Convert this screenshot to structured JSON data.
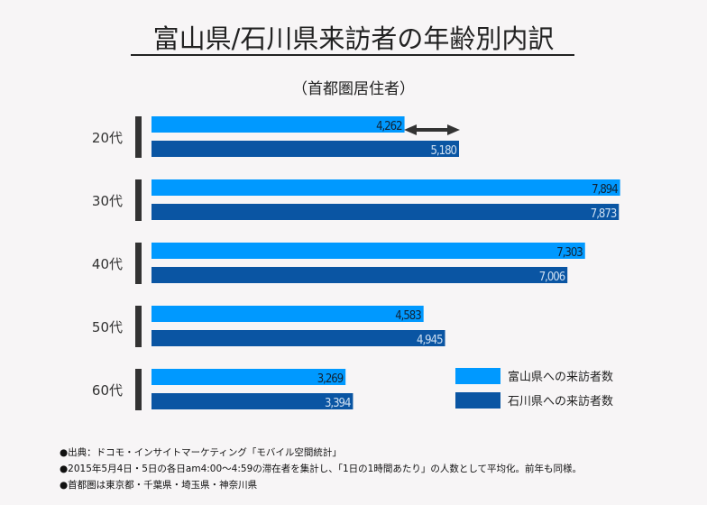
{
  "title": "富山県/石川県来訪者の年齢別内訳",
  "subtitle": "（首都圏居住者）",
  "chart_data": {
    "type": "bar",
    "orientation": "horizontal",
    "categories": [
      "20代",
      "30代",
      "40代",
      "50代",
      "60代"
    ],
    "series": [
      {
        "name": "富山県への来訪者数",
        "color": "#0099ff",
        "values": [
          4262,
          7894,
          7303,
          4583,
          3269
        ],
        "labels": [
          "4,262",
          "7,894",
          "7,303",
          "4,583",
          "3,269"
        ]
      },
      {
        "name": "石川県への来訪者数",
        "color": "#0a55a3",
        "values": [
          5180,
          7873,
          7006,
          4945,
          3394
        ],
        "labels": [
          "5,180",
          "7,873",
          "7,006",
          "4,945",
          "3,394"
        ]
      }
    ],
    "legend": "bottom-right",
    "grid": false,
    "annotation": "double-arrow between 20代 bars"
  },
  "notes": [
    "●出典：ドコモ・インサイトマーケティング「モバイル空間統計」",
    "●2015年5月4日・5日の各日am4:00～4:59の滞在者を集計し、「1日の1時間あたり」の人数として平均化。前年も同様。",
    "●首都圏は東京都・千葉県・埼玉県・神奈川県"
  ]
}
